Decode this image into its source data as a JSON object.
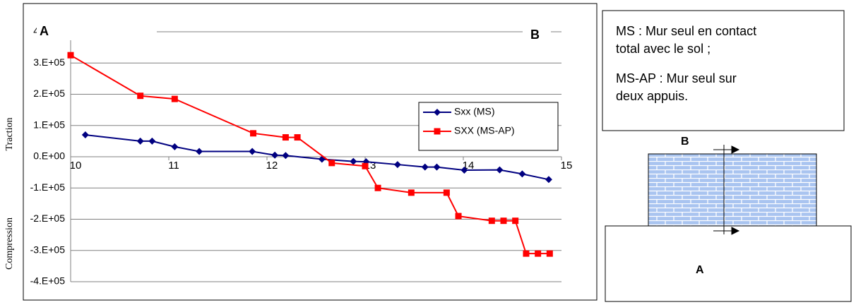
{
  "chart_data": {
    "type": "line",
    "annotations": {
      "left_top": "Traction",
      "left_bottom": "Compression",
      "point_a": "A",
      "point_b": "B"
    },
    "xlim": [
      10,
      15
    ],
    "xticks": [
      10,
      11,
      12,
      13,
      14,
      15
    ],
    "ylim": [
      -400000,
      400000
    ],
    "yticks": [
      {
        "value": 400000,
        "label": "4.E+05"
      },
      {
        "value": 300000,
        "label": "3.E+05"
      },
      {
        "value": 200000,
        "label": "2.E+05"
      },
      {
        "value": 100000,
        "label": "1.E+05"
      },
      {
        "value": 0,
        "label": "0.E+00"
      },
      {
        "value": -100000,
        "label": "-1.E+05"
      },
      {
        "value": -200000,
        "label": "-2.E+05"
      },
      {
        "value": -300000,
        "label": "-3.E+05"
      },
      {
        "value": -400000,
        "label": "-4.E+05"
      }
    ],
    "grid": true,
    "legend": "upper right",
    "series": [
      {
        "name": "Sxx (MS)",
        "color": "#000080",
        "marker": "diamond",
        "x": [
          10.15,
          10.71,
          10.83,
          11.06,
          11.31,
          11.85,
          12.08,
          12.19,
          12.56,
          12.88,
          13.01,
          13.33,
          13.61,
          13.73,
          14.01,
          14.37,
          14.6,
          14.87
        ],
        "values": [
          70000,
          50000,
          50000,
          32000,
          17000,
          17000,
          5000,
          4000,
          -8000,
          -15000,
          -16000,
          -25000,
          -33000,
          -33000,
          -43000,
          -42000,
          -55000,
          -73000
        ]
      },
      {
        "name": "SXX (MS-AP)",
        "color": "#ff0000",
        "marker": "square",
        "x": [
          10.0,
          10.71,
          11.06,
          11.86,
          12.19,
          12.31,
          12.66,
          13.0,
          13.13,
          13.47,
          13.83,
          13.95,
          14.29,
          14.41,
          14.53,
          14.64,
          14.76,
          14.88
        ],
        "values": [
          325000,
          195000,
          185000,
          75000,
          62000,
          62000,
          -20000,
          -30000,
          -100000,
          -115000,
          -115000,
          -190000,
          -205000,
          -205000,
          -205000,
          -310000,
          -310000,
          -310000
        ]
      }
    ]
  },
  "panel": {
    "text": [
      "MS : Mur seul en contact",
      "total avec le sol ;",
      "MS-AP : Mur seul sur",
      "deux appuis."
    ],
    "label_b": "B",
    "label_a": "A"
  }
}
